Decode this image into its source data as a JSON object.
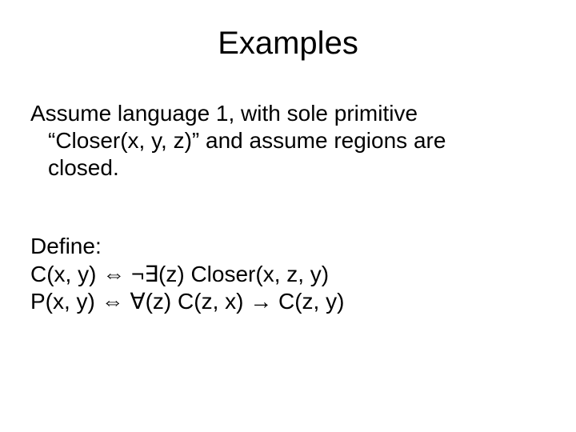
{
  "slide": {
    "title": "Examples",
    "paragraph1": {
      "line1": "Assume language 1, with sole primitive",
      "line2": "“Closer(x, y, z)” and assume regions are",
      "line3": "closed."
    },
    "paragraph2": {
      "line1": "Define:",
      "line2": "C(x, y) ⇔ ¬∃(z) Closer(x, z, y)",
      "line3": "P(x, y) ⇔ ∀(z) C(z, x) → C(z, y)"
    }
  },
  "style": {
    "background_color": "#ffffff",
    "text_color": "#000000",
    "title_fontsize": 40,
    "body_fontsize": 28,
    "font_family": "Arial"
  }
}
